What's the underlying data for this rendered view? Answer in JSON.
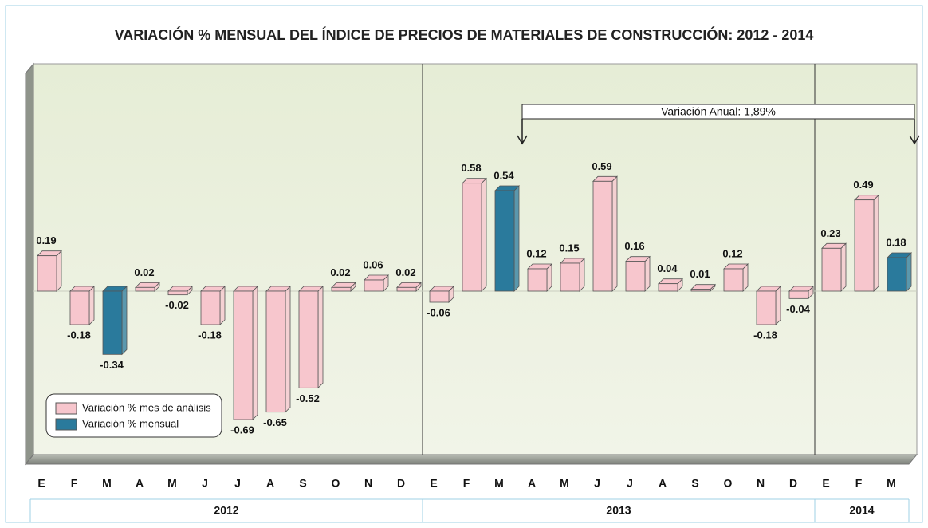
{
  "chart_data": {
    "type": "bar",
    "title": "VARIACIÓN % MENSUAL DEL ÍNDICE DE PRECIOS DE MATERIALES DE CONSTRUCCIÓN:  2012 - 2014",
    "groups": [
      {
        "label": "2012",
        "categories": [
          "E",
          "F",
          "M",
          "A",
          "M",
          "J",
          "J",
          "A",
          "S",
          "O",
          "N",
          "D"
        ]
      },
      {
        "label": "2013",
        "categories": [
          "E",
          "F",
          "M",
          "A",
          "M",
          "J",
          "J",
          "A",
          "S",
          "O",
          "N",
          "D"
        ]
      },
      {
        "label": "2014",
        "categories": [
          "E",
          "F",
          "M"
        ]
      }
    ],
    "series": [
      {
        "name": "Variación % mes de análisis",
        "color": "#f7c6cd",
        "values": [
          0.19,
          -0.18,
          null,
          0.02,
          -0.02,
          -0.18,
          -0.69,
          -0.65,
          -0.52,
          0.02,
          0.06,
          0.02,
          -0.06,
          0.58,
          null,
          0.12,
          0.15,
          0.59,
          0.16,
          0.04,
          0.01,
          0.12,
          -0.18,
          -0.04,
          0.23,
          0.49,
          null
        ]
      },
      {
        "name": "Variación % mensual",
        "color": "#2a7a9c",
        "values": [
          null,
          null,
          -0.34,
          null,
          null,
          null,
          null,
          null,
          null,
          null,
          null,
          null,
          null,
          null,
          0.54,
          null,
          null,
          null,
          null,
          null,
          null,
          null,
          null,
          null,
          null,
          null,
          0.18
        ]
      }
    ],
    "annotation": "Variación Anual: 1,89%",
    "ylim": [
      -0.9,
      1.2
    ]
  }
}
